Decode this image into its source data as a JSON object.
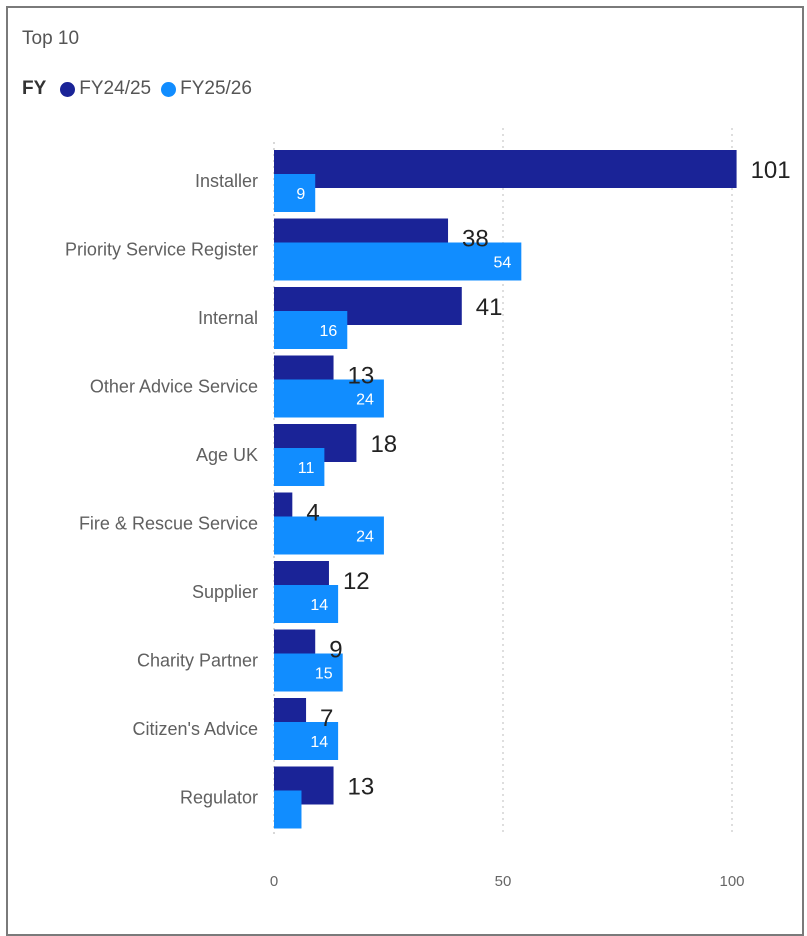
{
  "chart_data": {
    "type": "bar",
    "orientation": "horizontal",
    "title": "Top 10",
    "legend_title": "FY",
    "legend_position": "top-left",
    "categories": [
      "Installer",
      "Priority Service Register",
      "Internal",
      "Other Advice Service",
      "Age UK",
      "Fire & Rescue Service",
      "Supplier",
      "Charity Partner",
      "Citizen's Advice",
      "Regulator"
    ],
    "series": [
      {
        "name": "FY24/25",
        "color": "#1a2397",
        "values": [
          101,
          38,
          41,
          13,
          18,
          4,
          12,
          9,
          7,
          13
        ],
        "labels": [
          "101",
          "38",
          "41",
          "13",
          "18",
          "4",
          "12",
          "9",
          "7",
          "13"
        ]
      },
      {
        "name": "FY25/26",
        "color": "#118dff",
        "values": [
          9,
          54,
          16,
          24,
          11,
          24,
          14,
          15,
          14,
          6
        ],
        "labels": [
          "9",
          "54",
          "16",
          "24",
          "11",
          "24",
          "14",
          "15",
          "14",
          ""
        ]
      }
    ],
    "xlim": [
      0,
      110
    ],
    "xticks": [
      0,
      50,
      100
    ],
    "xtick_labels": [
      "0",
      "50",
      "100"
    ],
    "grid": true
  }
}
